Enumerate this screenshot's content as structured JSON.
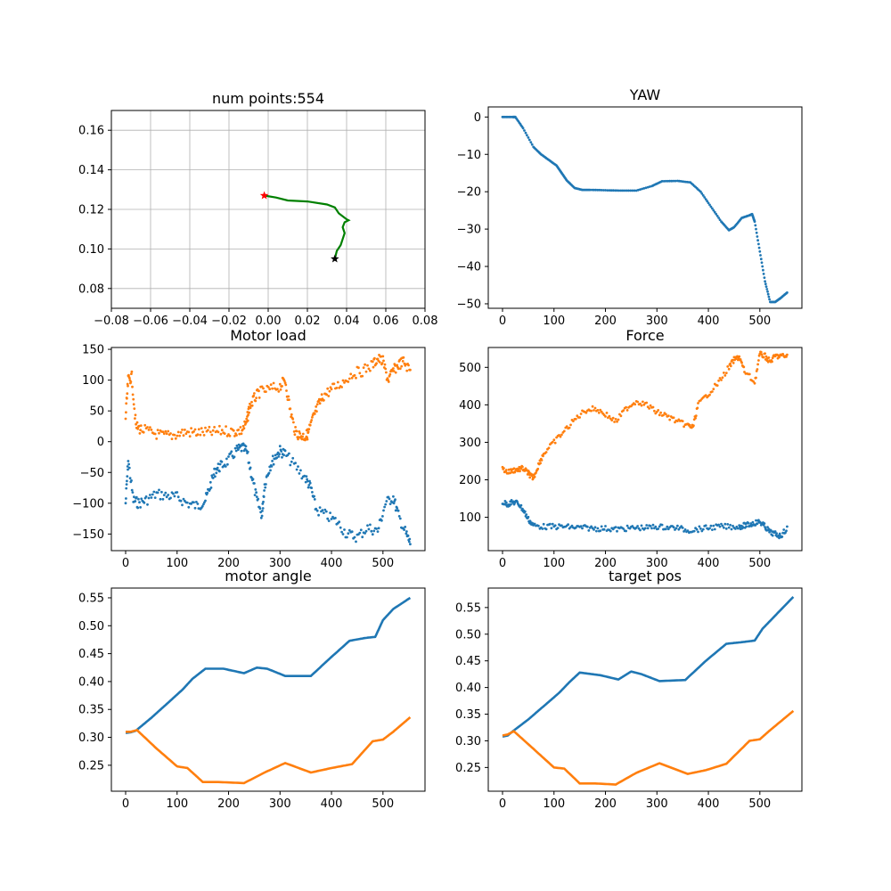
{
  "colors": {
    "blue": "#1f77b4",
    "orange": "#ff7f0e",
    "green": "#008000",
    "red": "#ff0000",
    "black": "#000000",
    "grid": "#b0b0b0"
  },
  "chart_data": [
    {
      "id": "trajectory",
      "type": "line",
      "title": "num points:554",
      "xlim": [
        -0.08,
        0.08
      ],
      "ylim": [
        0.07,
        0.17
      ],
      "xticks": [
        -0.08,
        -0.06,
        -0.04,
        -0.02,
        0.0,
        0.02,
        0.04,
        0.06,
        0.08
      ],
      "xtick_labels": [
        "−0.08",
        "−0.06",
        "−0.04",
        "−0.02",
        "0.00",
        "0.02",
        "0.04",
        "0.06",
        "0.08"
      ],
      "yticks": [
        0.08,
        0.1,
        0.12,
        0.14,
        0.16
      ],
      "ytick_labels": [
        "0.08",
        "0.10",
        "0.12",
        "0.14",
        "0.16"
      ],
      "grid": true,
      "series": [
        {
          "color": "green",
          "x": [
            -0.002,
            0.004,
            0.01,
            0.02,
            0.03,
            0.034,
            0.036,
            0.038,
            0.04,
            0.041,
            0.039,
            0.038,
            0.039,
            0.038,
            0.037,
            0.035,
            0.034
          ],
          "y": [
            0.127,
            0.126,
            0.1245,
            0.124,
            0.1225,
            0.121,
            0.118,
            0.1165,
            0.115,
            0.1145,
            0.1135,
            0.111,
            0.108,
            0.105,
            0.102,
            0.099,
            0.095
          ]
        }
      ],
      "markers": [
        {
          "color": "red",
          "shape": "star",
          "x": -0.002,
          "y": 0.127
        },
        {
          "color": "black",
          "shape": "star",
          "x": 0.034,
          "y": 0.095
        }
      ]
    },
    {
      "id": "yaw",
      "type": "scatter",
      "title": "YAW",
      "xlim": [
        -27.7,
        581.7
      ],
      "ylim": [
        -51.2,
        2.7
      ],
      "xticks": [
        0,
        100,
        200,
        300,
        400,
        500
      ],
      "xtick_labels": [
        "0",
        "100",
        "200",
        "300",
        "400",
        "500"
      ],
      "yticks": [
        0,
        -10,
        -20,
        -30,
        -40,
        -50
      ],
      "ytick_labels": [
        "0",
        "−10",
        "−20",
        "−30",
        "−40",
        "−50"
      ],
      "grid": false,
      "series": [
        {
          "color": "blue",
          "x": [
            0,
            20,
            25,
            40,
            60,
            75,
            90,
            105,
            115,
            125,
            140,
            155,
            170,
            200,
            230,
            260,
            290,
            310,
            340,
            365,
            385,
            405,
            425,
            440,
            450,
            465,
            480,
            485,
            490,
            500,
            510,
            520,
            530,
            540,
            553
          ],
          "y": [
            0,
            0,
            0,
            -3,
            -8,
            -10,
            -11.5,
            -13,
            -15,
            -17,
            -19,
            -19.5,
            -19.5,
            -19.6,
            -19.7,
            -19.7,
            -18.5,
            -17.2,
            -17.1,
            -17.5,
            -20,
            -24,
            -28,
            -30.3,
            -29.5,
            -27,
            -26.3,
            -26,
            -28,
            -36,
            -44,
            -49.5,
            -49.5,
            -48.5,
            -47
          ]
        }
      ]
    },
    {
      "id": "motor-load",
      "type": "scatter",
      "title": "Motor load",
      "xlim": [
        -27.7,
        581.7
      ],
      "ylim": [
        -177,
        153
      ],
      "xticks": [
        0,
        100,
        200,
        300,
        400,
        500
      ],
      "xtick_labels": [
        "0",
        "100",
        "200",
        "300",
        "400",
        "500"
      ],
      "yticks": [
        150,
        100,
        50,
        0,
        -50,
        -100,
        -150
      ],
      "ytick_labels": [
        "150",
        "100",
        "50",
        "0",
        "−50",
        "−100",
        "−150"
      ],
      "grid": false,
      "series": [
        {
          "color": "blue",
          "x": [
            0,
            5,
            15,
            25,
            40,
            60,
            80,
            100,
            120,
            140,
            155,
            165,
            175,
            185,
            200,
            215,
            225,
            235,
            245,
            255,
            265,
            270,
            280,
            290,
            300,
            310,
            330,
            350,
            360,
            370,
            390,
            410,
            430,
            450,
            470,
            490,
            505,
            520,
            530,
            545,
            553
          ],
          "y": [
            -100,
            -30,
            -95,
            -100,
            -95,
            -85,
            -88,
            -90,
            -100,
            -105,
            -95,
            -70,
            -45,
            -40,
            -30,
            -15,
            -10,
            -15,
            -55,
            -95,
            -120,
            -70,
            -40,
            -25,
            -15,
            -20,
            -40,
            -60,
            -75,
            -110,
            -120,
            -130,
            -150,
            -155,
            -140,
            -145,
            -100,
            -90,
            -120,
            -150,
            -165
          ]
        },
        {
          "color": "orange",
          "x": [
            0,
            5,
            12,
            20,
            30,
            50,
            70,
            90,
            110,
            130,
            150,
            170,
            190,
            210,
            225,
            235,
            240,
            250,
            260,
            280,
            300,
            310,
            320,
            330,
            340,
            350,
            355,
            365,
            375,
            385,
            400,
            420,
            440,
            460,
            480,
            490,
            500,
            510,
            520,
            530,
            540,
            553
          ],
          "y": [
            40,
            100,
            105,
            25,
            20,
            15,
            10,
            10,
            15,
            15,
            15,
            15,
            18,
            16,
            18,
            30,
            55,
            70,
            80,
            85,
            90,
            100,
            50,
            15,
            10,
            8,
            15,
            40,
            60,
            75,
            85,
            95,
            110,
            115,
            125,
            135,
            130,
            100,
            115,
            125,
            130,
            115
          ]
        }
      ]
    },
    {
      "id": "force",
      "type": "scatter",
      "title": "Force",
      "xlim": [
        -27.7,
        581.7
      ],
      "ylim": [
        11,
        553
      ],
      "xticks": [
        0,
        100,
        200,
        300,
        400,
        500
      ],
      "xtick_labels": [
        "0",
        "100",
        "200",
        "300",
        "400",
        "500"
      ],
      "yticks": [
        500,
        400,
        300,
        200,
        100
      ],
      "ytick_labels": [
        "500",
        "400",
        "300",
        "200",
        "100"
      ],
      "grid": false,
      "series": [
        {
          "color": "blue",
          "x": [
            0,
            10,
            20,
            30,
            40,
            50,
            60,
            80,
            100,
            120,
            140,
            160,
            180,
            200,
            220,
            240,
            260,
            280,
            300,
            320,
            340,
            360,
            380,
            400,
            420,
            440,
            460,
            470,
            480,
            490,
            500,
            510,
            520,
            530,
            540,
            553
          ],
          "y": [
            140,
            135,
            140,
            138,
            120,
            95,
            78,
            75,
            75,
            75,
            73,
            72,
            70,
            70,
            68,
            70,
            72,
            72,
            75,
            73,
            72,
            65,
            68,
            72,
            75,
            75,
            75,
            78,
            80,
            85,
            88,
            75,
            60,
            55,
            50,
            70
          ]
        },
        {
          "color": "orange",
          "x": [
            0,
            10,
            20,
            30,
            40,
            50,
            55,
            60,
            70,
            80,
            100,
            120,
            140,
            160,
            180,
            200,
            220,
            240,
            260,
            280,
            300,
            320,
            340,
            360,
            370,
            380,
            400,
            420,
            440,
            450,
            460,
            470,
            490,
            500,
            510,
            520,
            530,
            540,
            553
          ],
          "y": [
            230,
            220,
            225,
            228,
            230,
            218,
            210,
            205,
            240,
            270,
            300,
            330,
            360,
            385,
            390,
            375,
            355,
            390,
            410,
            400,
            380,
            370,
            355,
            345,
            340,
            400,
            430,
            460,
            500,
            520,
            528,
            490,
            460,
            535,
            530,
            515,
            530,
            530,
            530
          ]
        }
      ]
    },
    {
      "id": "motor-angle",
      "type": "line",
      "title": "motor angle",
      "xlim": [
        -27.7,
        581.7
      ],
      "ylim": [
        0.2035,
        0.5675
      ],
      "xticks": [
        0,
        100,
        200,
        300,
        400,
        500
      ],
      "xtick_labels": [
        "0",
        "100",
        "200",
        "300",
        "400",
        "500"
      ],
      "yticks": [
        0.55,
        0.5,
        0.45,
        0.4,
        0.35,
        0.3,
        0.25
      ],
      "ytick_labels": [
        "0.55",
        "0.50",
        "0.45",
        "0.40",
        "0.35",
        "0.30",
        "0.25"
      ],
      "grid": false,
      "series": [
        {
          "color": "blue",
          "x": [
            0,
            10,
            20,
            50,
            80,
            110,
            130,
            155,
            190,
            230,
            255,
            275,
            310,
            360,
            395,
            435,
            465,
            485,
            500,
            520,
            553
          ],
          "y": [
            0.308,
            0.309,
            0.312,
            0.335,
            0.36,
            0.385,
            0.405,
            0.423,
            0.423,
            0.415,
            0.425,
            0.423,
            0.41,
            0.41,
            0.44,
            0.473,
            0.478,
            0.48,
            0.51,
            0.53,
            0.55
          ]
        },
        {
          "color": "orange",
          "x": [
            0,
            10,
            22,
            60,
            100,
            120,
            150,
            180,
            230,
            270,
            310,
            360,
            400,
            440,
            480,
            500,
            520,
            553
          ],
          "y": [
            0.31,
            0.31,
            0.313,
            0.28,
            0.248,
            0.245,
            0.22,
            0.22,
            0.218,
            0.237,
            0.254,
            0.237,
            0.245,
            0.252,
            0.293,
            0.296,
            0.31,
            0.336
          ]
        }
      ]
    },
    {
      "id": "target-pos",
      "type": "line",
      "title": "target pos",
      "xlim": [
        -27.7,
        581.7
      ],
      "ylim": [
        0.2055,
        0.5865
      ],
      "xticks": [
        0,
        100,
        200,
        300,
        400,
        500
      ],
      "xtick_labels": [
        "0",
        "100",
        "200",
        "300",
        "400",
        "500"
      ],
      "yticks": [
        0.55,
        0.5,
        0.45,
        0.4,
        0.35,
        0.3,
        0.25
      ],
      "ytick_labels": [
        "0.55",
        "0.50",
        "0.45",
        "0.40",
        "0.35",
        "0.30",
        "0.25"
      ],
      "grid": false,
      "series": [
        {
          "color": "blue",
          "x": [
            0,
            10,
            20,
            50,
            80,
            110,
            130,
            150,
            190,
            225,
            250,
            270,
            305,
            355,
            395,
            435,
            465,
            490,
            505,
            520,
            565
          ],
          "y": [
            0.308,
            0.31,
            0.318,
            0.34,
            0.365,
            0.39,
            0.41,
            0.428,
            0.423,
            0.415,
            0.43,
            0.425,
            0.412,
            0.414,
            0.45,
            0.482,
            0.485,
            0.488,
            0.51,
            0.525,
            0.57
          ]
        },
        {
          "color": "orange",
          "x": [
            0,
            10,
            22,
            60,
            100,
            120,
            150,
            180,
            220,
            260,
            305,
            360,
            395,
            435,
            480,
            500,
            520,
            565
          ],
          "y": [
            0.31,
            0.312,
            0.318,
            0.285,
            0.25,
            0.248,
            0.22,
            0.22,
            0.218,
            0.24,
            0.258,
            0.238,
            0.245,
            0.257,
            0.3,
            0.303,
            0.32,
            0.356
          ]
        }
      ]
    }
  ]
}
